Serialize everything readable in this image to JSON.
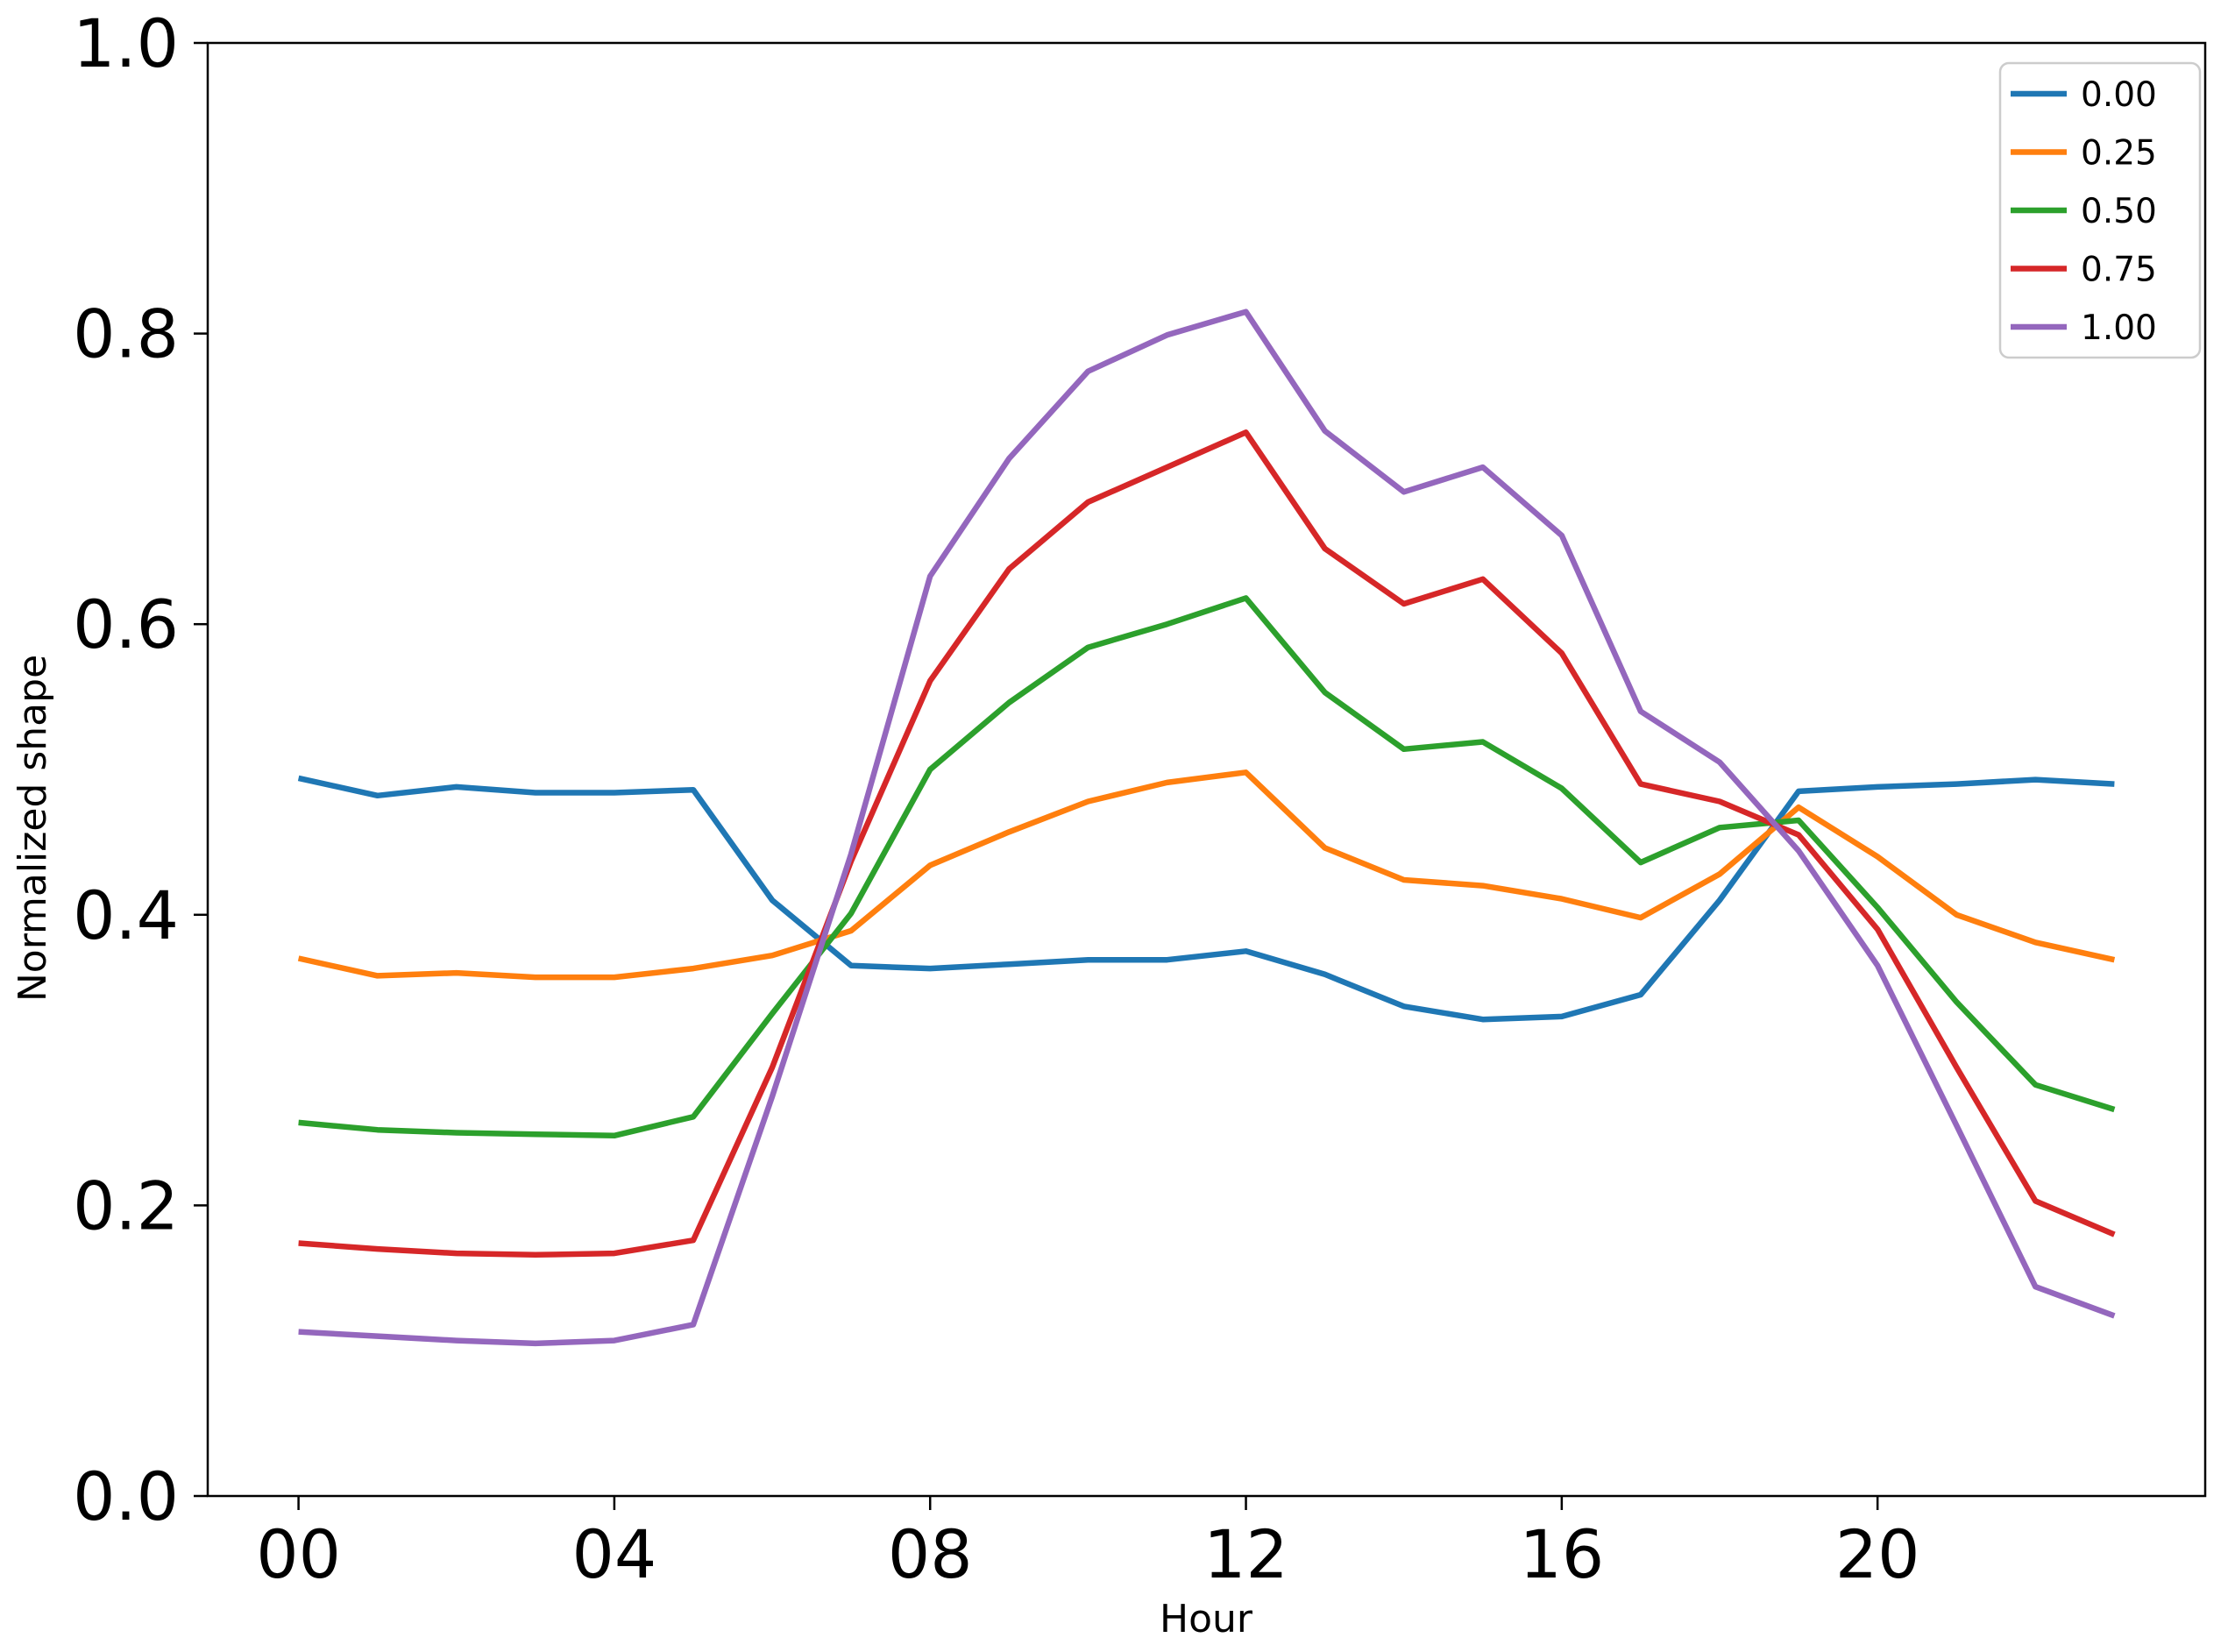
{
  "figure": {
    "background": "#ffffff",
    "spine_color": "#000000",
    "legend_border_color": "#cccccc"
  },
  "chart_data": {
    "type": "line",
    "title": "",
    "xlabel": "Hour",
    "ylabel": "Normalized shape",
    "x": [
      0,
      1,
      2,
      3,
      4,
      5,
      6,
      7,
      8,
      9,
      10,
      11,
      12,
      13,
      14,
      15,
      16,
      17,
      18,
      19,
      20,
      21,
      22,
      23
    ],
    "xlim": [
      -1.15,
      24.15
    ],
    "ylim": [
      0,
      1
    ],
    "grid": false,
    "x_ticks": {
      "positions": [
        0,
        4,
        8,
        12,
        16,
        20
      ],
      "labels": [
        "00",
        "04",
        "08",
        "12",
        "16",
        "20"
      ]
    },
    "y_ticks": {
      "positions": [
        0,
        0.2,
        0.4,
        0.6,
        0.8,
        1.0
      ],
      "labels": [
        "0.0",
        "0.2",
        "0.4",
        "0.6",
        "0.8",
        "1.0"
      ]
    },
    "legend": {
      "position": "upper right",
      "entries": [
        "0.00",
        "0.25",
        "0.50",
        "0.75",
        "1.00"
      ]
    },
    "series": [
      {
        "name": "0.00",
        "color": "#1f77b4",
        "values": [
          0.494,
          0.482,
          0.488,
          0.484,
          0.484,
          0.486,
          0.41,
          0.365,
          0.363,
          0.366,
          0.369,
          0.369,
          0.375,
          0.359,
          0.337,
          0.328,
          0.33,
          0.345,
          0.41,
          0.485,
          0.488,
          0.49,
          0.493,
          0.49
        ]
      },
      {
        "name": "0.25",
        "color": "#ff7f0e",
        "values": [
          0.37,
          0.358,
          0.36,
          0.357,
          0.357,
          0.363,
          0.372,
          0.389,
          0.434,
          0.457,
          0.478,
          0.491,
          0.498,
          0.446,
          0.424,
          0.42,
          0.411,
          0.398,
          0.428,
          0.474,
          0.44,
          0.4,
          0.381,
          0.369
        ]
      },
      {
        "name": "0.50",
        "color": "#2ca02c",
        "values": [
          0.257,
          0.252,
          0.25,
          0.249,
          0.248,
          0.261,
          0.332,
          0.401,
          0.5,
          0.546,
          0.584,
          0.6,
          0.618,
          0.553,
          0.514,
          0.519,
          0.487,
          0.436,
          0.46,
          0.465,
          0.405,
          0.34,
          0.283,
          0.266
        ]
      },
      {
        "name": "0.75",
        "color": "#d62728",
        "values": [
          0.174,
          0.17,
          0.167,
          0.166,
          0.167,
          0.176,
          0.295,
          0.437,
          0.561,
          0.638,
          0.684,
          0.708,
          0.732,
          0.652,
          0.614,
          0.631,
          0.58,
          0.49,
          0.478,
          0.455,
          0.39,
          0.295,
          0.203,
          0.18
        ]
      },
      {
        "name": "1.00",
        "color": "#9467bd",
        "values": [
          0.113,
          0.11,
          0.107,
          0.105,
          0.107,
          0.118,
          0.275,
          0.442,
          0.633,
          0.714,
          0.774,
          0.799,
          0.815,
          0.733,
          0.691,
          0.708,
          0.661,
          0.54,
          0.505,
          0.444,
          0.365,
          0.255,
          0.144,
          0.124
        ]
      }
    ]
  }
}
